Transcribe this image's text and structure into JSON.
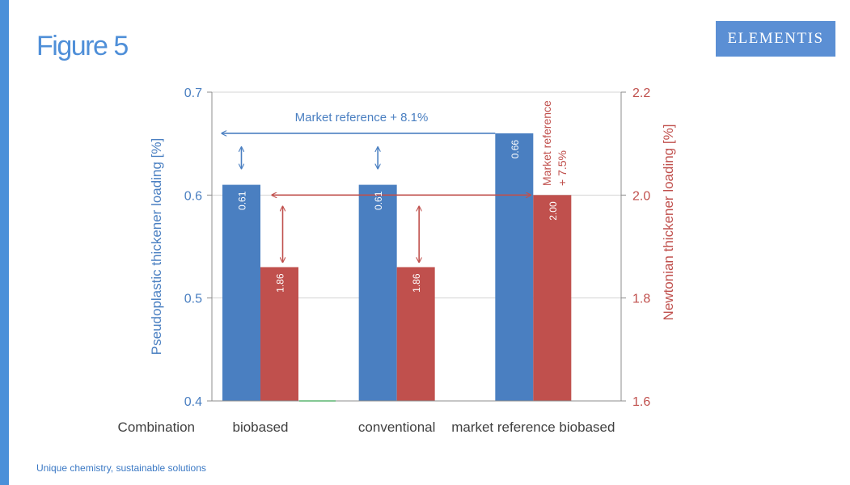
{
  "slide": {
    "title": "Figure 5",
    "footer": "Unique chemistry, sustainable solutions",
    "logo_text": "ELEMENTIS",
    "colors": {
      "accent": "#4a90d9",
      "title": "#4f8fd8",
      "logo_bg": "#5b8fd4",
      "footer": "#3a78c4"
    }
  },
  "chart_data": {
    "type": "bar",
    "categories": [
      "biobased",
      "conventional",
      "market reference biobased"
    ],
    "category_axis_label": "Combination",
    "series": [
      {
        "name": "Pseudoplastic thickener loading [%]",
        "axis": "left",
        "color": "#4a7fc1",
        "values": [
          0.61,
          0.61,
          0.66
        ],
        "labels": [
          "0.61",
          "0.61",
          "0.66"
        ]
      },
      {
        "name": "Newtonian thickener loading [%]",
        "axis": "right",
        "color": "#c0504d",
        "values": [
          1.86,
          1.86,
          2.0
        ],
        "labels": [
          "1.86",
          "1.86",
          "2.00"
        ]
      }
    ],
    "left_axis": {
      "label": "Pseudoplastic thickener loading [%]",
      "ylim": [
        0.4,
        0.7
      ],
      "ticks": [
        "0.4",
        "0.5",
        "0.6",
        "0.7"
      ],
      "color": "#4a7fc1"
    },
    "right_axis": {
      "label": "Newtonian thickener loading [%]",
      "ylim": [
        1.6,
        2.2
      ],
      "ticks": [
        "1.6",
        "1.8",
        "2.0",
        "2.2"
      ],
      "color": "#c0504d"
    },
    "annotations": {
      "pseudo": "Market reference + 8.1%",
      "newton_line1": "Market reference",
      "newton_line2": "+ 7.5%"
    },
    "grid": true
  }
}
